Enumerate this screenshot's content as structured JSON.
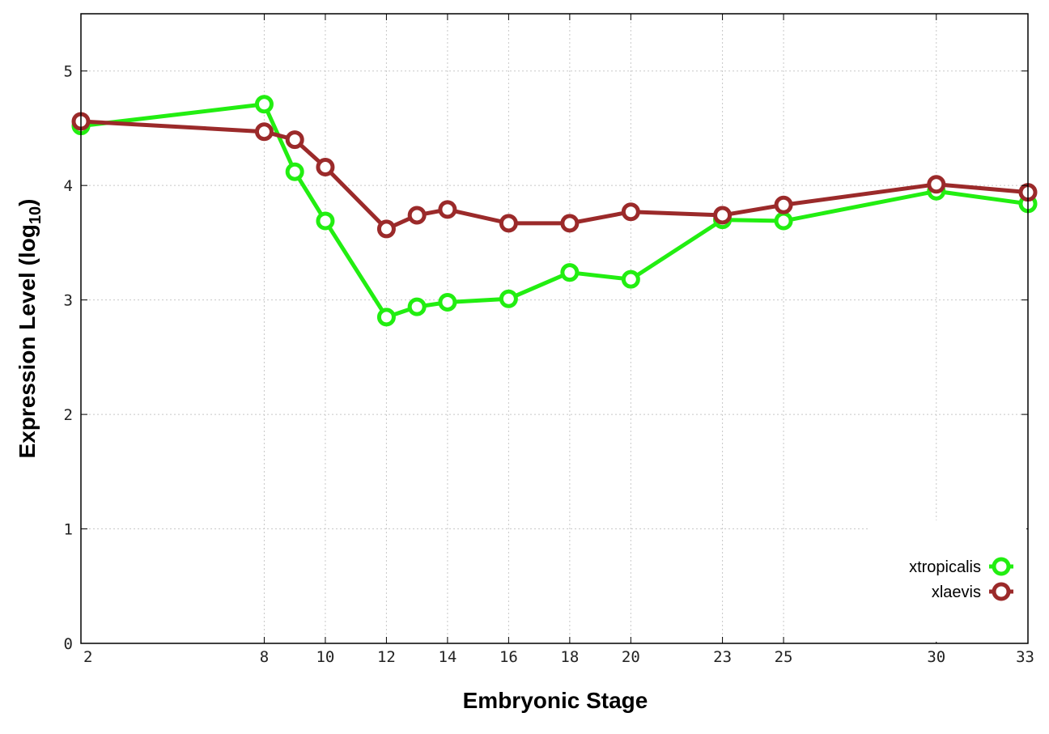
{
  "chart_data": {
    "type": "line",
    "title": "",
    "xlabel": "Embryonic Stage",
    "ylabel_main": "Expression Level (log",
    "ylabel_sub": "10",
    "ylabel_close": ")",
    "x": [
      2,
      8,
      9,
      10,
      12,
      13,
      14,
      16,
      18,
      20,
      23,
      25,
      30,
      33
    ],
    "xticks": [
      "2",
      "8",
      "10",
      "12",
      "14",
      "16",
      "18",
      "20",
      "23",
      "25",
      "30",
      "33"
    ],
    "xtick_values": [
      2,
      8,
      10,
      12,
      14,
      16,
      18,
      20,
      23,
      25,
      30,
      33
    ],
    "yticks": [
      "0",
      "1",
      "2",
      "3",
      "4",
      "5"
    ],
    "ytick_values": [
      0,
      1,
      2,
      3,
      4,
      5
    ],
    "xlim": [
      2,
      33
    ],
    "ylim": [
      0,
      5.5
    ],
    "grid": true,
    "legend_position": "bottom-right",
    "series": [
      {
        "name": "xtropicalis",
        "color": "#22ee11",
        "values": [
          4.52,
          4.71,
          4.12,
          3.69,
          2.85,
          2.94,
          2.98,
          3.01,
          3.24,
          3.18,
          3.7,
          3.69,
          3.95,
          3.84
        ]
      },
      {
        "name": "xlaevis",
        "color": "#9b2a2a",
        "values": [
          4.56,
          4.47,
          4.4,
          4.16,
          3.62,
          3.74,
          3.79,
          3.67,
          3.67,
          3.77,
          3.74,
          3.83,
          4.01,
          3.94
        ]
      }
    ]
  }
}
